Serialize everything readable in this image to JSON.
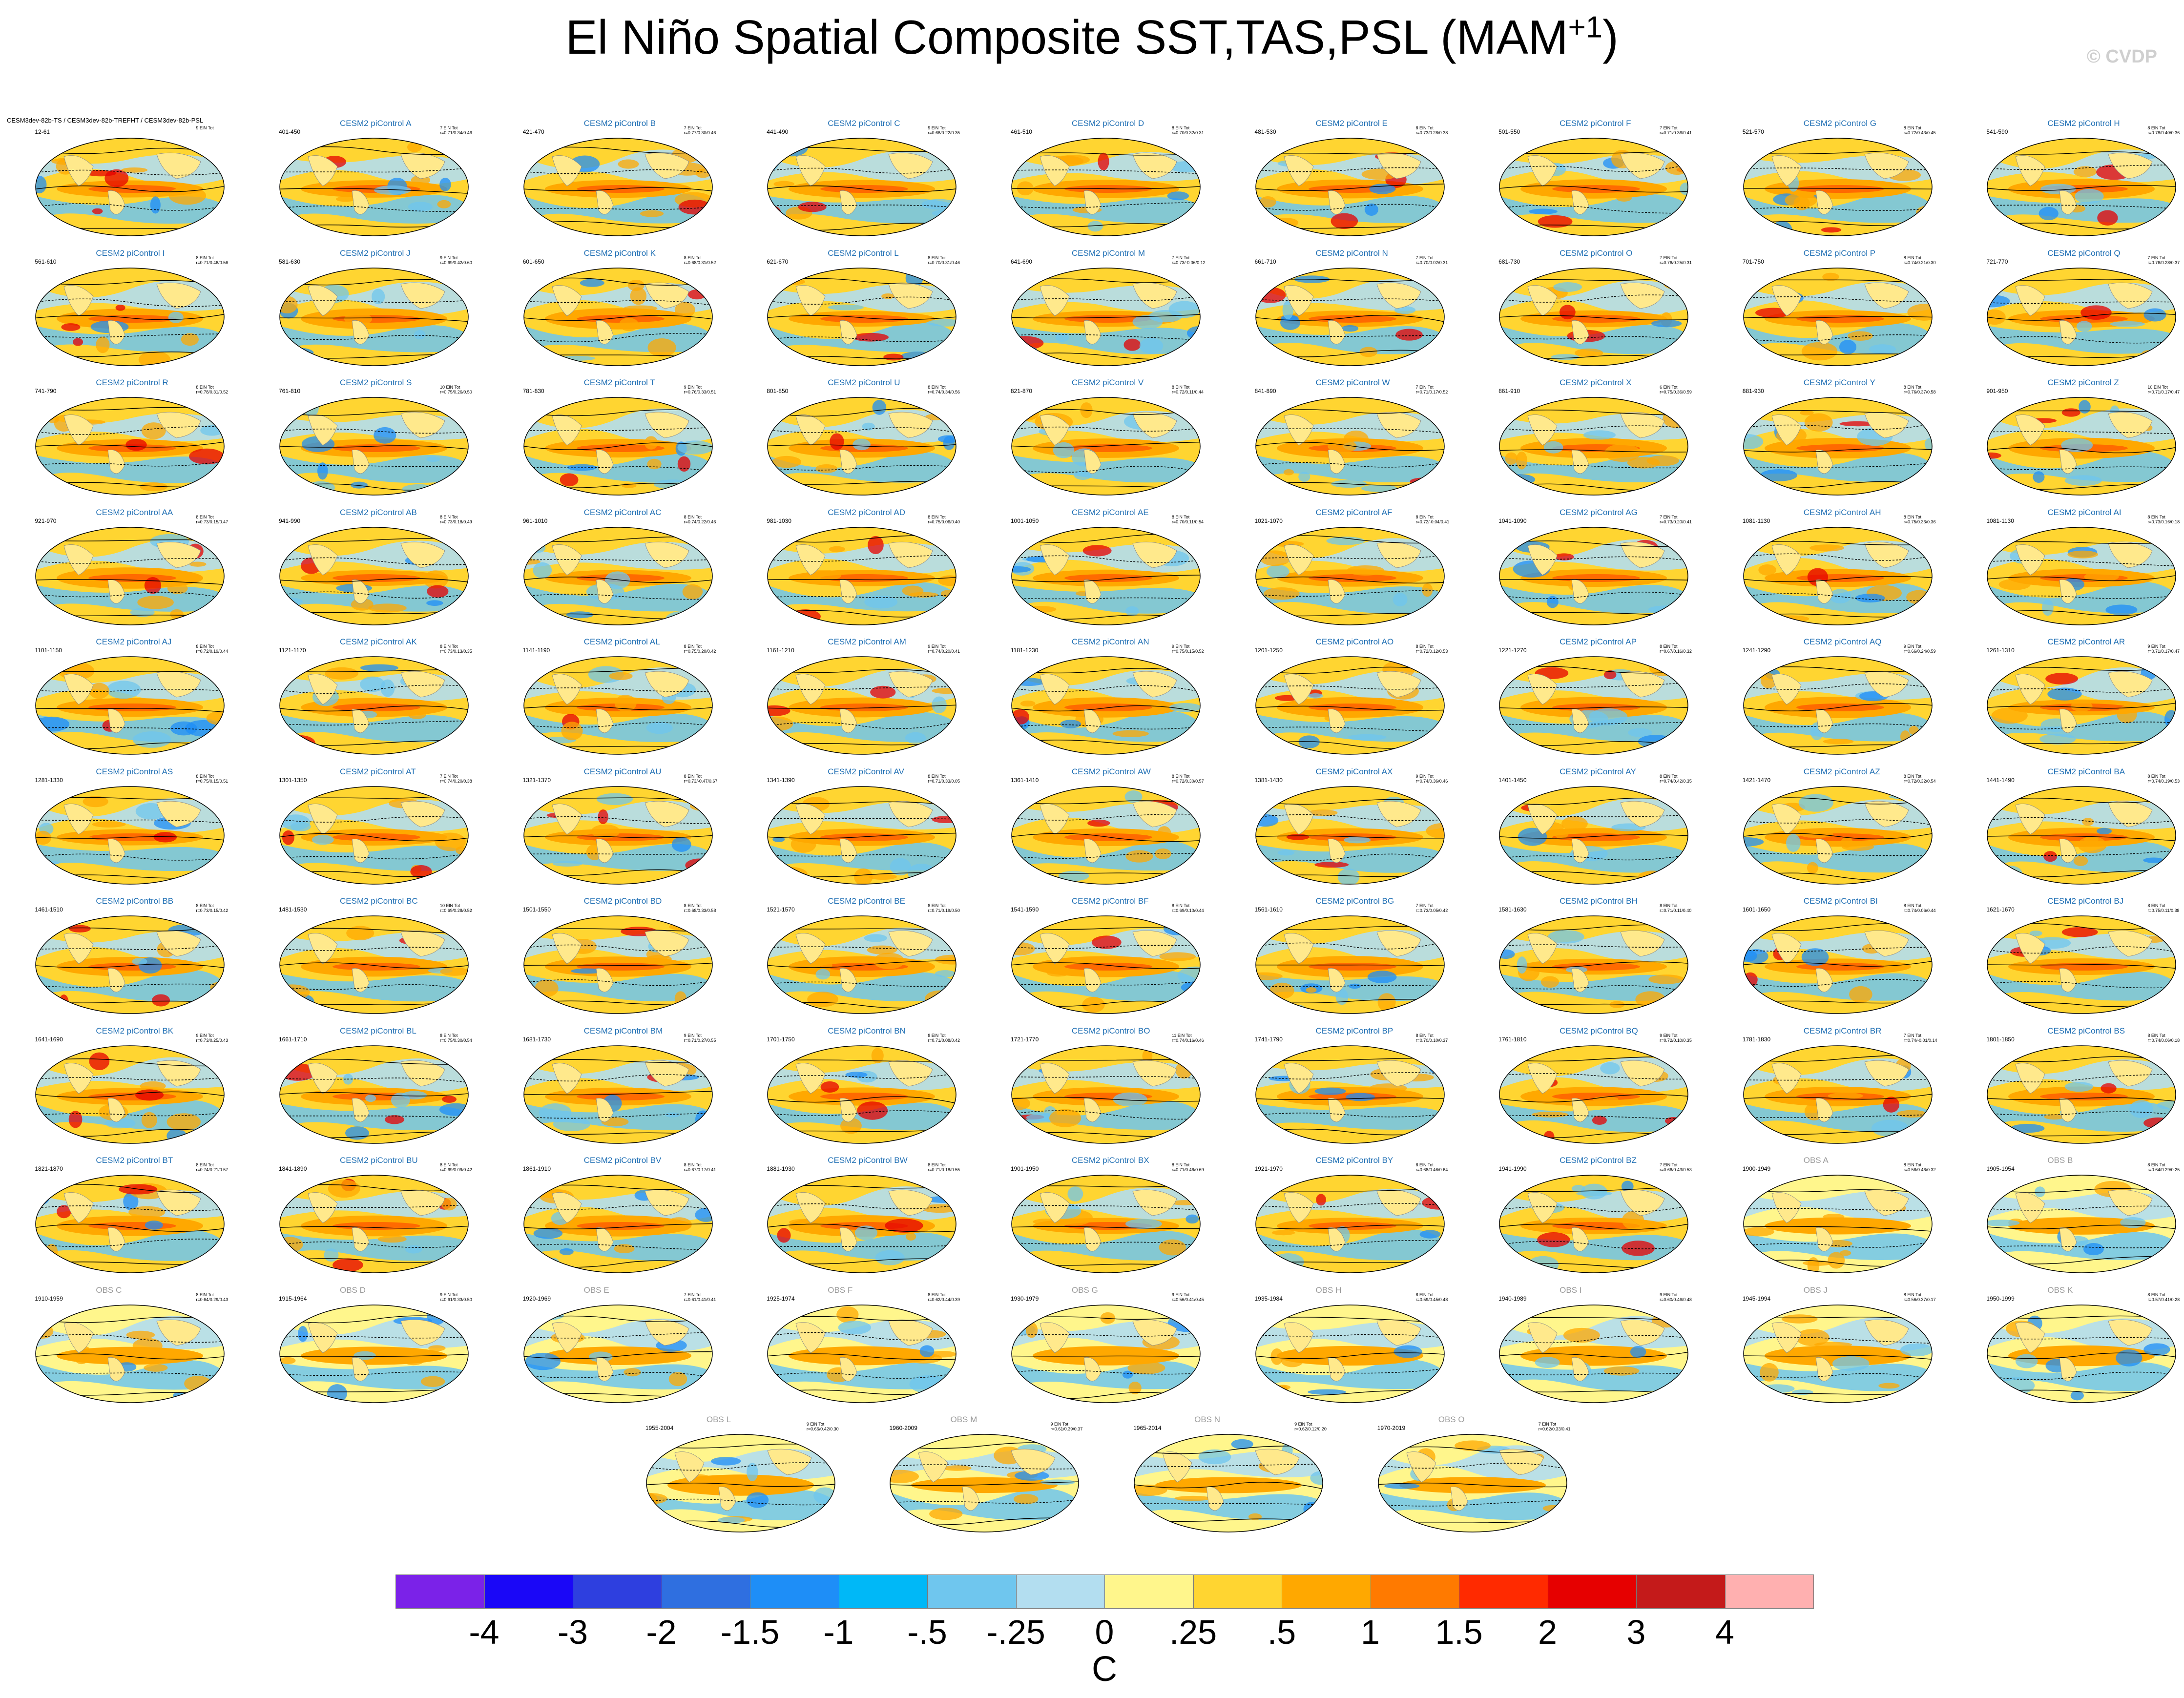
{
  "title": "El Niño Spatial Composite SST,TAS,PSL (MAM",
  "title_sup": "+1",
  "title_close": ")",
  "watermark": "© CVDP",
  "units": "C",
  "first_panel_label": "CESM3dev-82b-TS / CESM3dev-82b-TREFHT / CESM3dev-82b-PSL",
  "first_panel_years": "12-61",
  "first_panel_stat": "9 ElN Tot",
  "panels": [
    {
      "title": "CESM2 piControl A",
      "years": "401-450",
      "stat": "7 ElN Tot\nr=0.71/0.34/0.46"
    },
    {
      "title": "CESM2 piControl B",
      "years": "421-470",
      "stat": "7 ElN Tot\nr=0.77/0.30/0.46"
    },
    {
      "title": "CESM2 piControl C",
      "years": "441-490",
      "stat": "9 ElN Tot\nr=0.66/0.22/0.35"
    },
    {
      "title": "CESM2 piControl D",
      "years": "461-510",
      "stat": "8 ElN Tot\nr=0.70/0.32/0.31"
    },
    {
      "title": "CESM2 piControl E",
      "years": "481-530",
      "stat": "8 ElN Tot\nr=0.73/0.28/0.38"
    },
    {
      "title": "CESM2 piControl F",
      "years": "501-550",
      "stat": "7 ElN Tot\nr=0.71/0.36/0.41"
    },
    {
      "title": "CESM2 piControl G",
      "years": "521-570",
      "stat": "8 ElN Tot\nr=0.72/0.43/0.45"
    },
    {
      "title": "CESM2 piControl H",
      "years": "541-590",
      "stat": "8 ElN Tot\nr=0.78/0.40/0.36"
    },
    {
      "title": "CESM2 piControl I",
      "years": "561-610",
      "stat": "8 ElN Tot\nr=0.71/0.46/0.56"
    },
    {
      "title": "CESM2 piControl J",
      "years": "581-630",
      "stat": "9 ElN Tot\nr=0.69/0.42/0.60"
    },
    {
      "title": "CESM2 piControl K",
      "years": "601-650",
      "stat": "8 ElN Tot\nr=0.68/0.31/0.52"
    },
    {
      "title": "CESM2 piControl L",
      "years": "621-670",
      "stat": "8 ElN Tot\nr=0.70/0.31/0.46"
    },
    {
      "title": "CESM2 piControl M",
      "years": "641-690",
      "stat": "7 ElN Tot\nr=0.73/-0.06/0.12"
    },
    {
      "title": "CESM2 piControl N",
      "years": "661-710",
      "stat": "7 ElN Tot\nr=0.70/0.02/0.31"
    },
    {
      "title": "CESM2 piControl O",
      "years": "681-730",
      "stat": "7 ElN Tot\nr=0.76/0.25/0.31"
    },
    {
      "title": "CESM2 piControl P",
      "years": "701-750",
      "stat": "8 ElN Tot\nr=0.74/0.21/0.30"
    },
    {
      "title": "CESM2 piControl Q",
      "years": "721-770",
      "stat": "7 ElN Tot\nr=0.76/0.28/0.37"
    },
    {
      "title": "CESM2 piControl R",
      "years": "741-790",
      "stat": "8 ElN Tot\nr=0.78/0.31/0.52"
    },
    {
      "title": "CESM2 piControl S",
      "years": "761-810",
      "stat": "10 ElN Tot\nr=0.75/0.26/0.50"
    },
    {
      "title": "CESM2 piControl T",
      "years": "781-830",
      "stat": "9 ElN Tot\nr=0.76/0.33/0.51"
    },
    {
      "title": "CESM2 piControl U",
      "years": "801-850",
      "stat": "8 ElN Tot\nr=0.74/0.34/0.56"
    },
    {
      "title": "CESM2 piControl V",
      "years": "821-870",
      "stat": "8 ElN Tot\nr=0.72/0.11/0.44"
    },
    {
      "title": "CESM2 piControl W",
      "years": "841-890",
      "stat": "7 ElN Tot\nr=0.71/0.17/0.52"
    },
    {
      "title": "CESM2 piControl X",
      "years": "861-910",
      "stat": "6 ElN Tot\nr=0.75/0.36/0.59"
    },
    {
      "title": "CESM2 piControl Y",
      "years": "881-930",
      "stat": "8 ElN Tot\nr=0.76/0.37/0.58"
    },
    {
      "title": "CESM2 piControl Z",
      "years": "901-950",
      "stat": "10 ElN Tot\nr=0.71/0.17/0.47"
    },
    {
      "title": "CESM2 piControl AA",
      "years": "921-970",
      "stat": "8 ElN Tot\nr=0.73/0.15/0.47"
    },
    {
      "title": "CESM2 piControl AB",
      "years": "941-990",
      "stat": "8 ElN Tot\nr=0.73/0.18/0.49"
    },
    {
      "title": "CESM2 piControl AC",
      "years": "961-1010",
      "stat": "8 ElN Tot\nr=0.74/0.22/0.46"
    },
    {
      "title": "CESM2 piControl AD",
      "years": "981-1030",
      "stat": "8 ElN Tot\nr=0.75/0.06/0.40"
    },
    {
      "title": "CESM2 piControl AE",
      "years": "1001-1050",
      "stat": "8 ElN Tot\nr=0.70/0.11/0.54"
    },
    {
      "title": "CESM2 piControl AF",
      "years": "1021-1070",
      "stat": "8 ElN Tot\nr=0.72/-0.04/0.41"
    },
    {
      "title": "CESM2 piControl AG",
      "years": "1041-1090",
      "stat": "7 ElN Tot\nr=0.73/0.20/0.41"
    },
    {
      "title": "CESM2 piControl AH",
      "years": "1081-1130",
      "stat": "8 ElN Tot\nr=0.75/0.36/0.36"
    },
    {
      "title": "CESM2 piControl AI",
      "years": "1081-1130",
      "stat": "8 ElN Tot\nr=0.73/0.16/0.18"
    },
    {
      "title": "CESM2 piControl AJ",
      "years": "1101-1150",
      "stat": "8 ElN Tot\nr=0.72/0.19/0.44"
    },
    {
      "title": "CESM2 piControl AK",
      "years": "1121-1170",
      "stat": "8 ElN Tot\nr=0.73/0.13/0.35"
    },
    {
      "title": "CESM2 piControl AL",
      "years": "1141-1190",
      "stat": "8 ElN Tot\nr=0.75/0.20/0.42"
    },
    {
      "title": "CESM2 piControl AM",
      "years": "1161-1210",
      "stat": "9 ElN Tot\nr=0.74/0.20/0.41"
    },
    {
      "title": "CESM2 piControl AN",
      "years": "1181-1230",
      "stat": "9 ElN Tot\nr=0.75/0.15/0.52"
    },
    {
      "title": "CESM2 piControl AO",
      "years": "1201-1250",
      "stat": "8 ElN Tot\nr=0.72/0.12/0.53"
    },
    {
      "title": "CESM2 piControl AP",
      "years": "1221-1270",
      "stat": "8 ElN Tot\nr=0.67/0.16/0.32"
    },
    {
      "title": "CESM2 piControl AQ",
      "years": "1241-1290",
      "stat": "9 ElN Tot\nr=0.66/0.24/0.59"
    },
    {
      "title": "CESM2 piControl AR",
      "years": "1261-1310",
      "stat": "9 ElN Tot\nr=0.71/0.17/0.47"
    },
    {
      "title": "CESM2 piControl AS",
      "years": "1281-1330",
      "stat": "8 ElN Tot\nr=0.75/0.15/0.51"
    },
    {
      "title": "CESM2 piControl AT",
      "years": "1301-1350",
      "stat": "7 ElN Tot\nr=0.74/0.20/0.38"
    },
    {
      "title": "CESM2 piControl AU",
      "years": "1321-1370",
      "stat": "8 ElN Tot\nr=0.73/-0.47/0.67"
    },
    {
      "title": "CESM2 piControl AV",
      "years": "1341-1390",
      "stat": "8 ElN Tot\nr=0.71/0.33/0.05"
    },
    {
      "title": "CESM2 piControl AW",
      "years": "1361-1410",
      "stat": "8 ElN Tot\nr=0.72/0.30/0.57"
    },
    {
      "title": "CESM2 piControl AX",
      "years": "1381-1430",
      "stat": "9 ElN Tot\nr=0.74/0.36/0.46"
    },
    {
      "title": "CESM2 piControl AY",
      "years": "1401-1450",
      "stat": "8 ElN Tot\nr=0.74/0.42/0.35"
    },
    {
      "title": "CESM2 piControl AZ",
      "years": "1421-1470",
      "stat": "8 ElN Tot\nr=0.72/0.32/0.54"
    },
    {
      "title": "CESM2 piControl BA",
      "years": "1441-1490",
      "stat": "8 ElN Tot\nr=0.74/0.19/0.53"
    },
    {
      "title": "CESM2 piControl BB",
      "years": "1461-1510",
      "stat": "8 ElN Tot\nr=0.73/0.15/0.42"
    },
    {
      "title": "CESM2 piControl BC",
      "years": "1481-1530",
      "stat": "10 ElN Tot\nr=0.69/0.28/0.52"
    },
    {
      "title": "CESM2 piControl BD",
      "years": "1501-1550",
      "stat": "8 ElN Tot\nr=0.68/0.33/0.58"
    },
    {
      "title": "CESM2 piControl BE",
      "years": "1521-1570",
      "stat": "8 ElN Tot\nr=0.71/0.19/0.50"
    },
    {
      "title": "CESM2 piControl BF",
      "years": "1541-1590",
      "stat": "8 ElN Tot\nr=0.69/0.10/0.44"
    },
    {
      "title": "CESM2 piControl BG",
      "years": "1561-1610",
      "stat": "7 ElN Tot\nr=0.73/0.05/0.42"
    },
    {
      "title": "CESM2 piControl BH",
      "years": "1581-1630",
      "stat": "8 ElN Tot\nr=0.71/0.11/0.40"
    },
    {
      "title": "CESM2 piControl BI",
      "years": "1601-1650",
      "stat": "8 ElN Tot\nr=0.74/0.06/0.44"
    },
    {
      "title": "CESM2 piControl BJ",
      "years": "1621-1670",
      "stat": "8 ElN Tot\nr=0.75/0.11/0.38"
    },
    {
      "title": "CESM2 piControl BK",
      "years": "1641-1690",
      "stat": "9 ElN Tot\nr=0.73/0.25/0.43"
    },
    {
      "title": "CESM2 piControl BL",
      "years": "1661-1710",
      "stat": "8 ElN Tot\nr=0.75/0.30/0.54"
    },
    {
      "title": "CESM2 piControl BM",
      "years": "1681-1730",
      "stat": "9 ElN Tot\nr=0.71/0.27/0.55"
    },
    {
      "title": "CESM2 piControl BN",
      "years": "1701-1750",
      "stat": "8 ElN Tot\nr=0.71/0.08/0.42"
    },
    {
      "title": "CESM2 piControl BO",
      "years": "1721-1770",
      "stat": "11 ElN Tot\nr=0.74/0.16/0.46"
    },
    {
      "title": "CESM2 piControl BP",
      "years": "1741-1790",
      "stat": "8 ElN Tot\nr=0.70/0.10/0.37"
    },
    {
      "title": "CESM2 piControl BQ",
      "years": "1761-1810",
      "stat": "9 ElN Tot\nr=0.72/0.10/0.35"
    },
    {
      "title": "CESM2 piControl BR",
      "years": "1781-1830",
      "stat": "7 ElN Tot\nr=0.74/-0.01/0.14"
    },
    {
      "title": "CESM2 piControl BS",
      "years": "1801-1850",
      "stat": "8 ElN Tot\nr=0.74/0.06/0.18"
    },
    {
      "title": "CESM2 piControl BT",
      "years": "1821-1870",
      "stat": "8 ElN Tot\nr=0.74/0.21/0.57"
    },
    {
      "title": "CESM2 piControl BU",
      "years": "1841-1890",
      "stat": "8 ElN Tot\nr=0.69/0.09/0.42"
    },
    {
      "title": "CESM2 piControl BV",
      "years": "1861-1910",
      "stat": "8 ElN Tot\nr=0.67/0.17/0.41"
    },
    {
      "title": "CESM2 piControl BW",
      "years": "1881-1930",
      "stat": "8 ElN Tot\nr=0.71/0.18/0.55"
    },
    {
      "title": "CESM2 piControl BX",
      "years": "1901-1950",
      "stat": "8 ElN Tot\nr=0.71/0.46/0.69"
    },
    {
      "title": "CESM2 piControl BY",
      "years": "1921-1970",
      "stat": "8 ElN Tot\nr=0.68/0.46/0.64"
    },
    {
      "title": "CESM2 piControl BZ",
      "years": "1941-1990",
      "stat": "7 ElN Tot\nr=0.66/0.43/0.53"
    },
    {
      "title": "OBS A",
      "years": "1900-1949",
      "stat": "8 ElN Tot\nr=0.58/0.46/0.32"
    },
    {
      "title": "OBS B",
      "years": "1905-1954",
      "stat": "8 ElN Tot\nr=0.64/0.29/0.25"
    },
    {
      "title": "OBS C",
      "years": "1910-1959",
      "stat": "8 ElN Tot\nr=0.64/0.29/0.43"
    },
    {
      "title": "OBS D",
      "years": "1915-1964",
      "stat": "9 ElN Tot\nr=0.61/0.33/0.50"
    },
    {
      "title": "OBS E",
      "years": "1920-1969",
      "stat": "7 ElN Tot\nr=0.61/0.41/0.41"
    },
    {
      "title": "OBS F",
      "years": "1925-1974",
      "stat": "8 ElN Tot\nr=0.62/0.44/0.39"
    },
    {
      "title": "OBS G",
      "years": "1930-1979",
      "stat": "9 ElN Tot\nr=0.56/0.41/0.45"
    },
    {
      "title": "OBS H",
      "years": "1935-1984",
      "stat": "8 ElN Tot\nr=0.59/0.45/0.48"
    },
    {
      "title": "OBS I",
      "years": "1940-1989",
      "stat": "9 ElN Tot\nr=0.60/0.46/0.48"
    },
    {
      "title": "OBS J",
      "years": "1945-1994",
      "stat": "8 ElN Tot\nr=0.56/0.37/0.17"
    },
    {
      "title": "OBS K",
      "years": "1950-1999",
      "stat": "8 ElN Tot\nr=0.57/0.41/0.28"
    },
    {
      "title": "OBS L",
      "years": "1955-2004",
      "stat": "9 ElN Tot\nr=0.66/0.42/0.30"
    },
    {
      "title": "OBS M",
      "years": "1960-2009",
      "stat": "9 ElN Tot\nr=0.61/0.39/0.37"
    },
    {
      "title": "OBS N",
      "years": "1965-2014",
      "stat": "9 ElN Tot\nr=0.62/0.12/0.20"
    },
    {
      "title": "OBS O",
      "years": "1970-2019",
      "stat": "7 ElN Tot\nr=0.62/0.33/0.41"
    }
  ],
  "colorbar": {
    "labels": [
      "-4",
      "-3",
      "-2",
      "-1.5",
      "-1",
      "-.5",
      "-.25",
      "0",
      ".25",
      ".5",
      "1",
      "1.5",
      "2",
      "3",
      "4"
    ],
    "colors": [
      "#7b22e8",
      "#1a07f7",
      "#2e3fdf",
      "#2f6fe0",
      "#1e8ef7",
      "#00b8f7",
      "#6fc6ee",
      "#b3def0",
      "#fff68c",
      "#ffd531",
      "#ffa800",
      "#ff7a00",
      "#ff2a00",
      "#e60000",
      "#c41a1a",
      "#ffb0b0"
    ]
  },
  "palette": {
    "ocean_warm": "#ffa800",
    "ocean_mid": "#ffd531",
    "ocean_light": "#fff68c",
    "cool_light": "#b3def0",
    "cool": "#6fc6ee",
    "cool_strong": "#1e8ef7",
    "hot": "#ff5a00",
    "hotter": "#e60000",
    "land": "#ffe98c",
    "contour": "#000000",
    "title_model": "#1f6fb4",
    "title_obs": "#9a9a9a"
  }
}
